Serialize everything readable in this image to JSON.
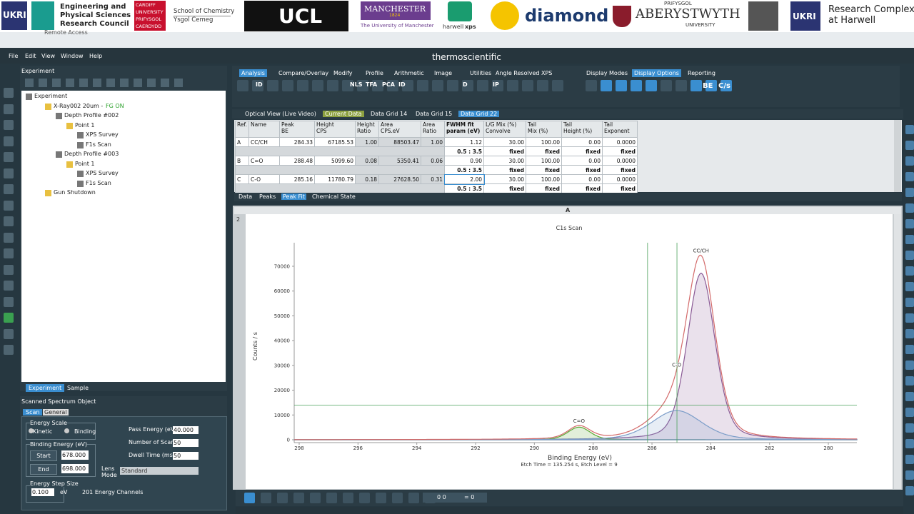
{
  "banner": {
    "ukri_left": "UKRI",
    "epsrc": [
      "Engineering and",
      "Physical Sciences",
      "Research Council"
    ],
    "cardiff": [
      "CARDIFF",
      "UNIVERSITY",
      "PRIFYSGOL",
      "CAERDYDD"
    ],
    "chemistry": [
      "School of Chemistry",
      "Ysgol Cemeg"
    ],
    "ucl": "UCL",
    "manchester": [
      "MANCHESTER",
      "1824",
      "The University of Manchester"
    ],
    "harwell": [
      "harwell",
      "xps"
    ],
    "diamond": "diamond",
    "aberystwyth": [
      "PRIFYSGOL",
      "ABERYSTWYTH",
      "UNIVERSITY"
    ],
    "ukri_right": "UKRI",
    "rch": [
      "Research Complex",
      "at Harwell"
    ]
  },
  "window_title": "Remote Access",
  "menu": [
    "File",
    "Edit",
    "View",
    "Window",
    "Help"
  ],
  "brand": "thermoscientific",
  "ribbon_tabs": [
    "Analysis",
    "Compare/Overlay",
    "Modify",
    "Profile",
    "Arithmetic",
    "Image",
    "Utilities",
    "Angle Resolved XPS"
  ],
  "display_tabs": [
    "Display Modes",
    "Display Options",
    "Reporting"
  ],
  "toolbar_labels": [
    "ID",
    "NLS",
    "TFA",
    "PCA",
    "ID",
    "D",
    "IP"
  ],
  "display_labels": [
    "BE",
    "C/s"
  ],
  "experiment_panel": {
    "title": "Experiment",
    "tree": {
      "label": "Experiment",
      "children": [
        {
          "label": "X-Ray002 20um -",
          "status": "FG  ON",
          "children": [
            {
              "label": "Depth Profile #002",
              "children": [
                {
                  "label": "Point 1",
                  "children": [
                    {
                      "label": "XPS Survey"
                    },
                    {
                      "label": "F1s Scan"
                    }
                  ]
                }
              ]
            },
            {
              "label": "Depth Profile #003",
              "children": [
                {
                  "label": "Point 1",
                  "children": [
                    {
                      "label": "XPS Survey"
                    },
                    {
                      "label": "F1s Scan"
                    }
                  ]
                }
              ]
            }
          ]
        },
        {
          "label": "Gun Shutdown"
        }
      ]
    },
    "tabs": [
      "Experiment",
      "Sample"
    ]
  },
  "scan_panel": {
    "title": "Scanned Spectrum Object",
    "tabs": [
      "Scan",
      "General"
    ],
    "energy_scale": "Energy Scale",
    "kinetic": "Kinetic",
    "binding": "Binding",
    "binding_energy": "Binding Energy (eV)",
    "start": "Start",
    "start_value": "678.000",
    "end": "End",
    "end_value": "698.000",
    "pass_energy": "Pass Energy (eV)",
    "pass_energy_value": "40.000",
    "scans": "Number of Scans",
    "scans_value": "50",
    "dwell": "Dwell Time  (ms)",
    "dwell_value": "50",
    "lens": "Lens Mode",
    "lens_value": "Standard",
    "step": "Energy Step Size",
    "step_value": "0.100",
    "step_unit": "eV",
    "channels": "201 Energy Channels"
  },
  "grid_tabs": [
    "Optical View (Live Video)",
    "Current Data",
    "Data Grid 14",
    "Data Grid 15",
    "Data Grid 22"
  ],
  "table": {
    "columns": [
      [
        "Ref."
      ],
      [
        "Name"
      ],
      [
        "Peak",
        "BE"
      ],
      [
        "Height",
        "CPS"
      ],
      [
        "Height",
        "Ratio"
      ],
      [
        "Area",
        "CPS.eV"
      ],
      [
        "Area",
        "Ratio"
      ],
      [
        "FWHM fit",
        "param (eV)"
      ],
      [
        "L/G Mix (%)",
        "Convolve"
      ],
      [
        "Tail",
        "Mix (%)"
      ],
      [
        "Tail",
        "Height (%)"
      ],
      [
        "Tail",
        "Exponent"
      ]
    ],
    "rows": [
      {
        "ref": "A",
        "name": "CC/CH",
        "be": "284.33",
        "height": "67185.53",
        "height_ratio": "1.00",
        "area": "88503.47",
        "area_ratio": "1.00",
        "fwhm": "1.12",
        "lg_mix": "30.00",
        "tail_mix": "100.00",
        "tail_height": "0.00",
        "tail_exponent": "0.0000",
        "constraints": [
          "0.5 : 3.5",
          "fixed",
          "fixed",
          "fixed",
          "fixed"
        ]
      },
      {
        "ref": "B",
        "name": "C=O",
        "be": "288.48",
        "height": "5099.60",
        "height_ratio": "0.08",
        "area": "5350.41",
        "area_ratio": "0.06",
        "fwhm": "0.90",
        "lg_mix": "30.00",
        "tail_mix": "100.00",
        "tail_height": "0.00",
        "tail_exponent": "0.0000",
        "constraints": [
          "0.5 : 3.5",
          "fixed",
          "fixed",
          "fixed",
          "fixed"
        ]
      },
      {
        "ref": "C",
        "name": "C-O",
        "be": "285.16",
        "height": "11780.79",
        "height_ratio": "0.18",
        "area": "27628.50",
        "area_ratio": "0.31",
        "fwhm": "2.00",
        "lg_mix": "30.00",
        "tail_mix": "100.00",
        "tail_height": "0.00",
        "tail_exponent": "0.0000",
        "constraints": [
          "0.5 : 3.5",
          "fixed",
          "fixed",
          "fixed",
          "fixed"
        ]
      }
    ]
  },
  "result_tabs": [
    "Data",
    "Peaks",
    "Peak Fit",
    "Chemical State"
  ],
  "chart_panel": {
    "header": "A",
    "number": "2"
  },
  "spectrum": {
    "title": "C1s Scan",
    "x_label": "Binding Energy (eV)",
    "note": "Etch Time = 135.254 s, Etch Level = 9",
    "y_label": "Counts / s",
    "xlim": [
      298.17,
      279.03
    ],
    "ylim": [
      -1150,
      79500
    ],
    "xticks": [
      298,
      296,
      294,
      292,
      290,
      288,
      286,
      284,
      282,
      280
    ],
    "yticks": [
      0,
      10000,
      20000,
      30000,
      40000,
      50000,
      60000,
      70000
    ],
    "component_colors": [
      "#8a5a95",
      "#5aa832",
      "#7a9cc8"
    ],
    "envelope_color": "#d36a6a",
    "cursor_x": [
      286.15,
      285.15
    ],
    "cursor_y": 14000,
    "cursor_color": "#4aa05a"
  },
  "status": {
    "readout": "0 0",
    "equals": "= 0"
  }
}
